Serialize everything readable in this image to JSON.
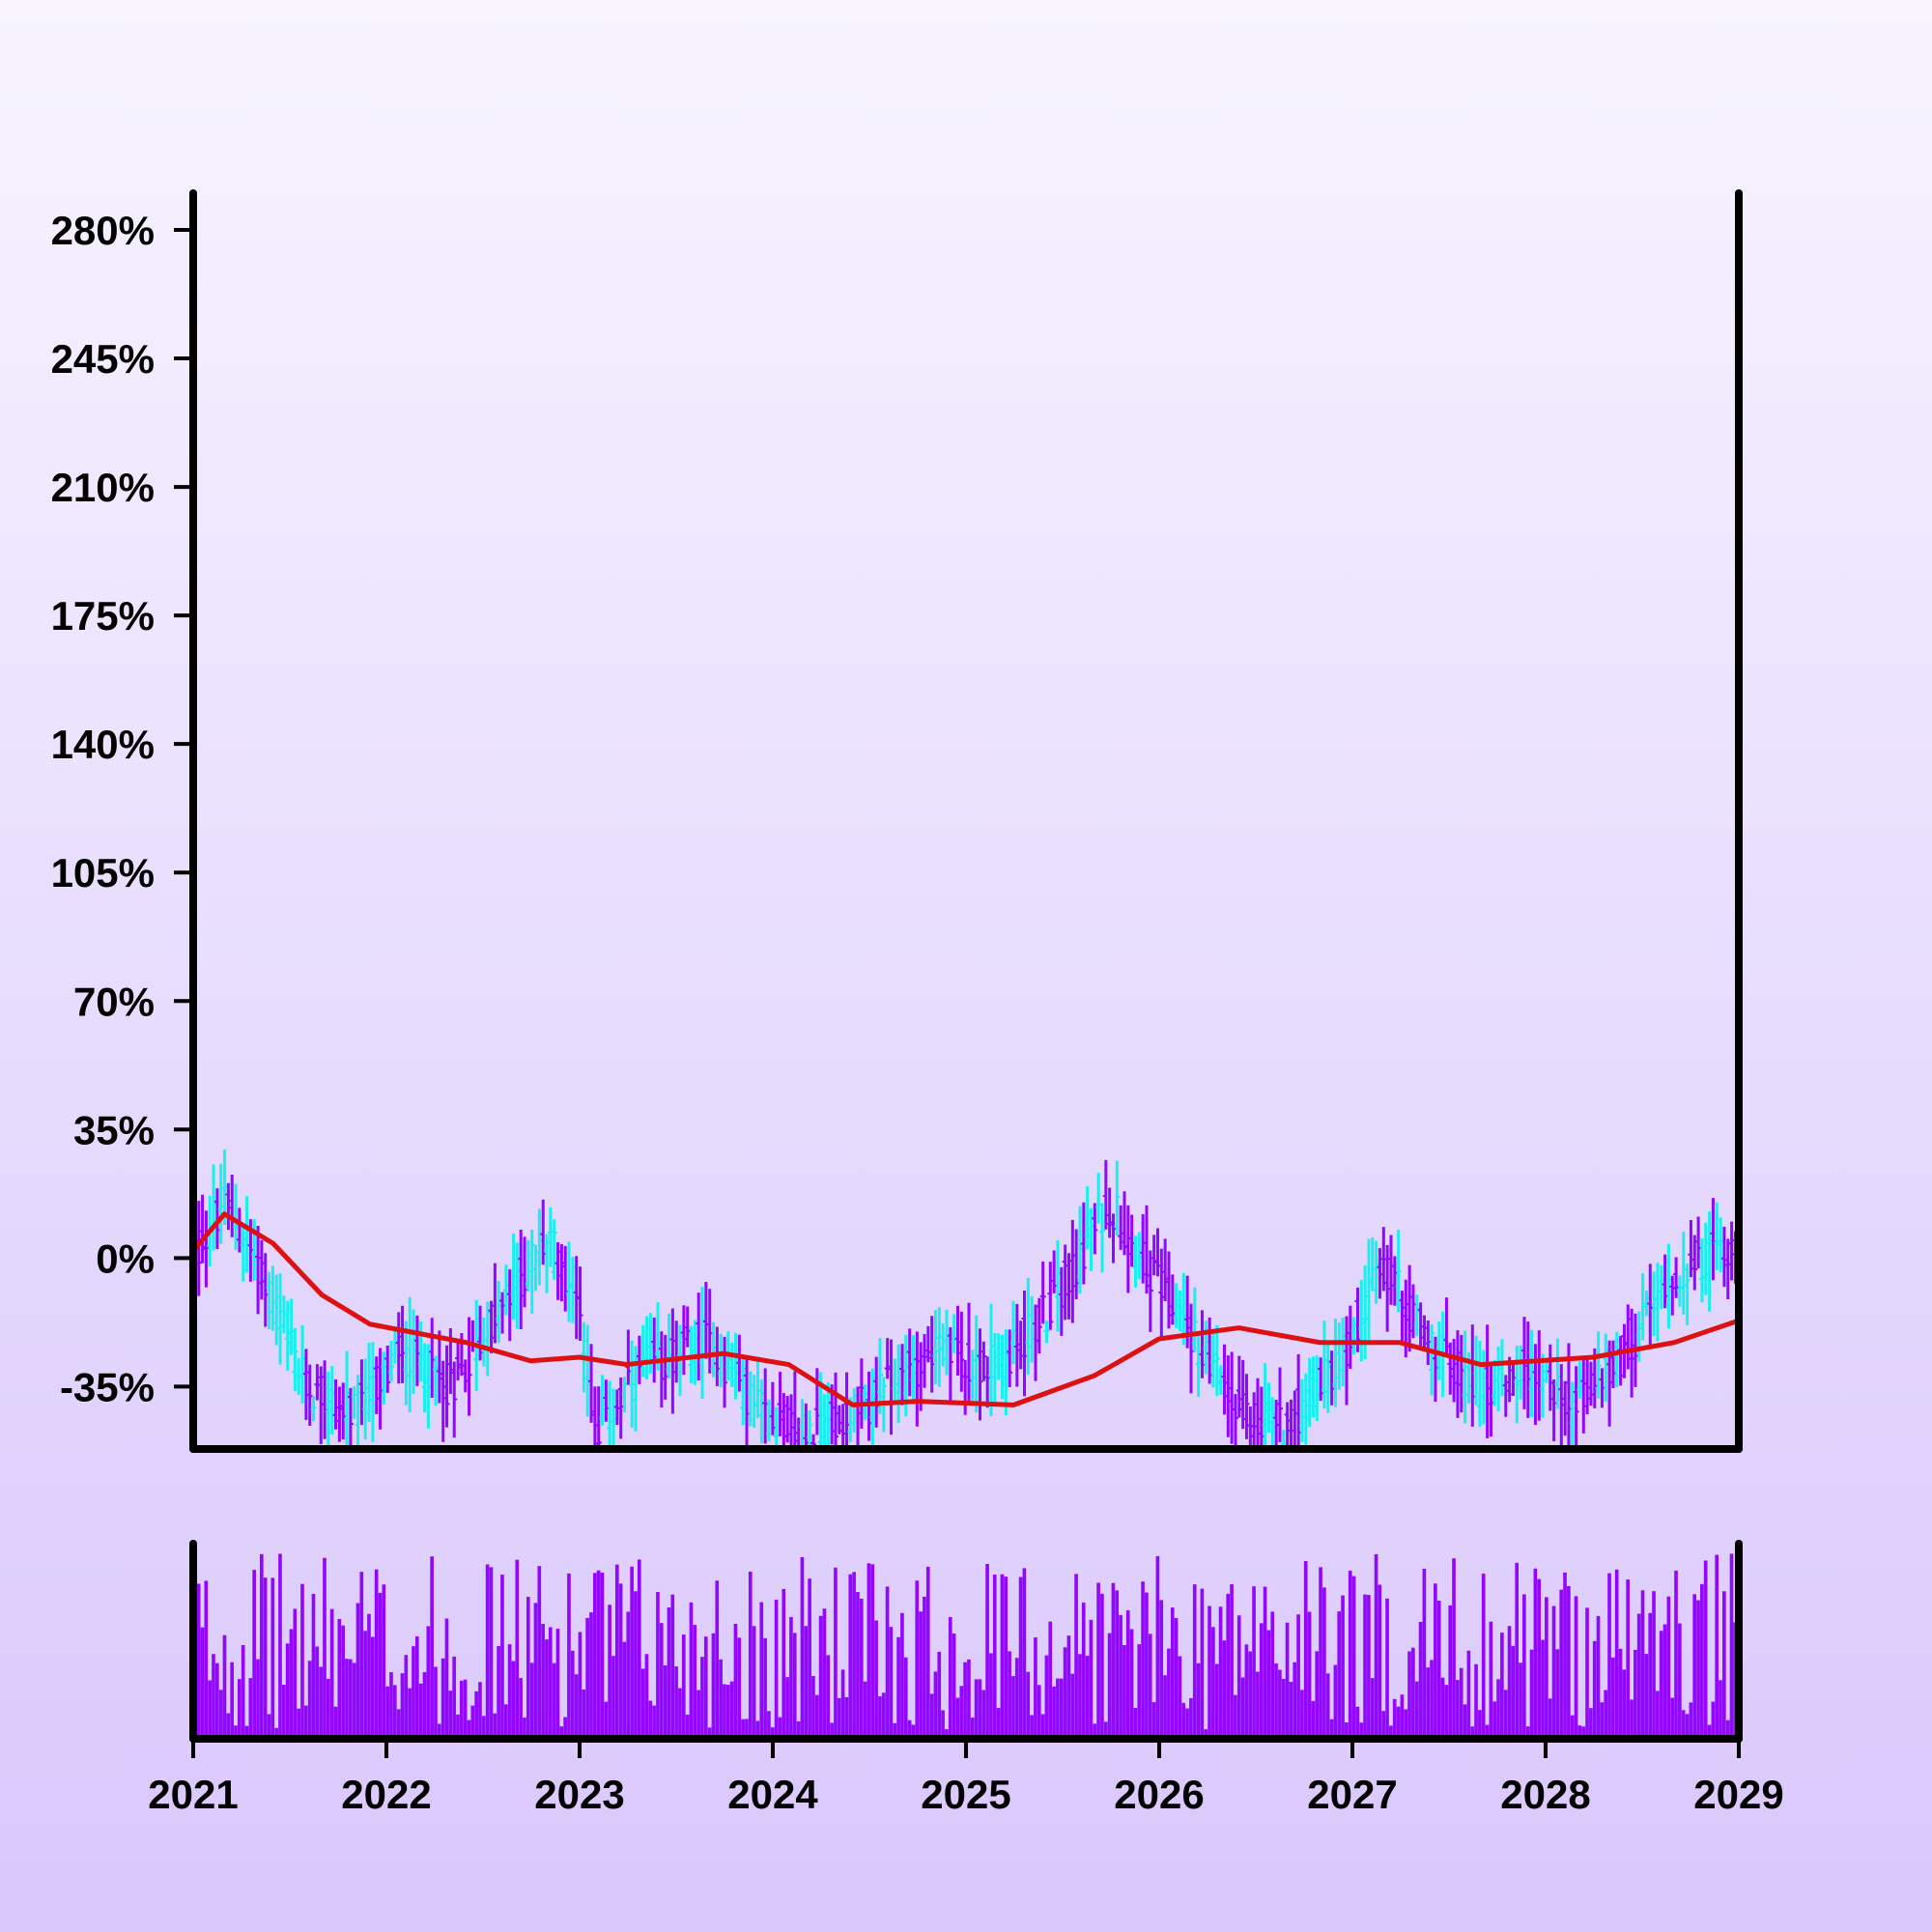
{
  "chart_data": {
    "type": "ohlc",
    "x_axis": {
      "type": "date",
      "range": [
        "2021-01-01",
        "2029-01-01"
      ],
      "tick_labels": [
        "2021",
        "2022",
        "2023",
        "2024",
        "2025",
        "2026",
        "2027",
        "2028",
        "2029"
      ]
    },
    "y_axis": {
      "unit": "%",
      "range": [
        -52,
        290
      ],
      "tick_values": [
        -35,
        0,
        35,
        70,
        105,
        140,
        175,
        210,
        245,
        280
      ],
      "tick_labels": [
        "-35%",
        "0%",
        "35%",
        "70%",
        "105%",
        "140%",
        "175%",
        "210%",
        "245%",
        "280%"
      ]
    },
    "colors": {
      "up": "#19f0ee",
      "down": "#9306ff",
      "moving_average": "#dd1111",
      "volume": "#9306ff",
      "axes": "#000000"
    },
    "grid": false,
    "price_path": [
      {
        "date": "2021-01-01",
        "value": 0
      },
      {
        "date": "2021-03-01",
        "value": 15
      },
      {
        "date": "2021-05-01",
        "value": 0
      },
      {
        "date": "2021-08-01",
        "value": -35
      },
      {
        "date": "2021-11-01",
        "value": -43
      },
      {
        "date": "2022-02-01",
        "value": -25
      },
      {
        "date": "2022-05-01",
        "value": -35
      },
      {
        "date": "2022-08-01",
        "value": -15
      },
      {
        "date": "2022-11-01",
        "value": 5
      },
      {
        "date": "2023-01-01",
        "value": -10
      },
      {
        "date": "2023-02-01",
        "value": -48
      },
      {
        "date": "2023-05-01",
        "value": -30
      },
      {
        "date": "2023-09-01",
        "value": -22
      },
      {
        "date": "2023-12-01",
        "value": -40
      },
      {
        "date": "2024-03-01",
        "value": -48
      },
      {
        "date": "2024-07-01",
        "value": -40
      },
      {
        "date": "2024-11-01",
        "value": -25
      },
      {
        "date": "2025-03-01",
        "value": -30
      },
      {
        "date": "2025-06-01",
        "value": -15
      },
      {
        "date": "2025-10-01",
        "value": 15
      },
      {
        "date": "2025-12-01",
        "value": 0
      },
      {
        "date": "2026-03-01",
        "value": -20
      },
      {
        "date": "2026-06-01",
        "value": -42
      },
      {
        "date": "2026-09-01",
        "value": -45
      },
      {
        "date": "2026-12-01",
        "value": -30
      },
      {
        "date": "2027-03-01",
        "value": -2
      },
      {
        "date": "2027-06-01",
        "value": -25
      },
      {
        "date": "2027-09-01",
        "value": -35
      },
      {
        "date": "2027-12-01",
        "value": -30
      },
      {
        "date": "2028-03-01",
        "value": -40
      },
      {
        "date": "2028-06-01",
        "value": -25
      },
      {
        "date": "2028-09-01",
        "value": -5
      },
      {
        "date": "2029-01-01",
        "value": 5
      }
    ],
    "moving_average": [
      {
        "date": "2021-01-01",
        "value": 2
      },
      {
        "date": "2021-03-01",
        "value": 12
      },
      {
        "date": "2021-06-01",
        "value": 4
      },
      {
        "date": "2021-09-01",
        "value": -10
      },
      {
        "date": "2021-12-01",
        "value": -18
      },
      {
        "date": "2022-06-01",
        "value": -23
      },
      {
        "date": "2022-10-01",
        "value": -28
      },
      {
        "date": "2023-01-01",
        "value": -27
      },
      {
        "date": "2023-04-01",
        "value": -29
      },
      {
        "date": "2023-10-01",
        "value": -26
      },
      {
        "date": "2024-02-01",
        "value": -29
      },
      {
        "date": "2024-06-01",
        "value": -40
      },
      {
        "date": "2024-10-01",
        "value": -39
      },
      {
        "date": "2025-04-01",
        "value": -40
      },
      {
        "date": "2025-09-01",
        "value": -32
      },
      {
        "date": "2026-01-01",
        "value": -22
      },
      {
        "date": "2026-06-01",
        "value": -19
      },
      {
        "date": "2026-11-01",
        "value": -23
      },
      {
        "date": "2027-04-01",
        "value": -23
      },
      {
        "date": "2027-09-01",
        "value": -29
      },
      {
        "date": "2028-04-01",
        "value": -27
      },
      {
        "date": "2028-09-01",
        "value": -23
      },
      {
        "date": "2029-01-01",
        "value": -17
      }
    ],
    "volume": {
      "relative_scale": [
        0,
        1
      ],
      "note": "one bar per candle; heights vary between roughly 0.05 and 1.0 of the panel"
    }
  }
}
